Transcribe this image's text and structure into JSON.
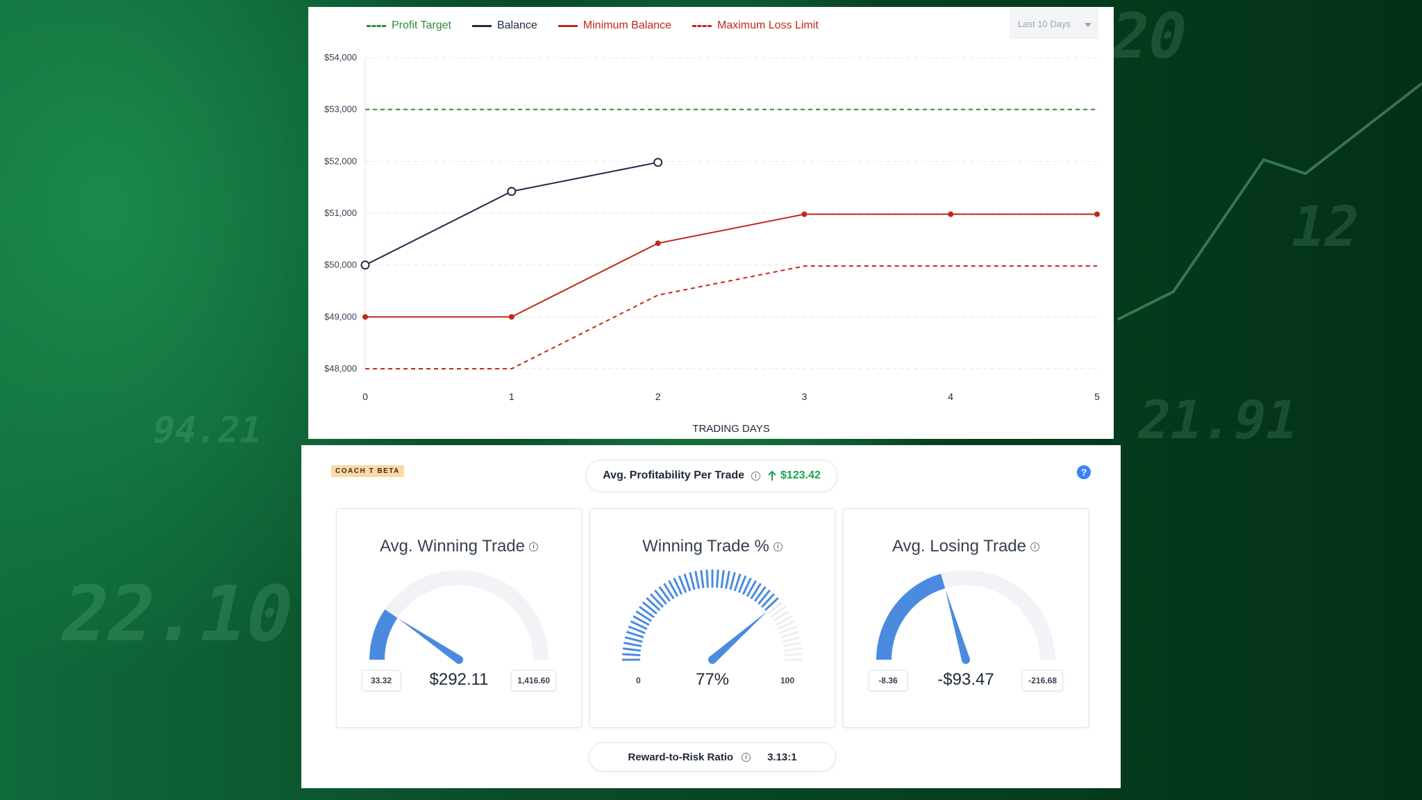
{
  "chart": {
    "legend": [
      {
        "label": "Profit Target",
        "color": "#2e8b3a",
        "dashed": true
      },
      {
        "label": "Balance",
        "color": "#1f2a44",
        "dashed": false
      },
      {
        "label": "Minimum Balance",
        "color": "#c0281c",
        "dashed": false
      },
      {
        "label": "Maximum Loss Limit",
        "color": "#c0281c",
        "dashed": true
      }
    ],
    "range_select": "Last 10 Days"
  },
  "chart_data": {
    "type": "line",
    "xlabel": "TRADING DAYS",
    "ylabel": "",
    "x": [
      0,
      1,
      2,
      3,
      4,
      5
    ],
    "ylim": [
      48000,
      54000
    ],
    "yticks": [
      "$54,000",
      "$53,000",
      "$52,000",
      "$51,000",
      "$50,000",
      "$49,000",
      "$48,000"
    ],
    "ytick_values": [
      54000,
      53000,
      52000,
      51000,
      50000,
      49000,
      48000
    ],
    "grid": true,
    "legend_position": "top-left",
    "series": [
      {
        "name": "Profit Target",
        "color": "#2e8b3a",
        "style": "dashed",
        "x": [
          0,
          5
        ],
        "values": [
          53000,
          53000
        ]
      },
      {
        "name": "Balance",
        "color": "#1f2a44",
        "style": "solid",
        "markers": "open-circle",
        "x": [
          0,
          1,
          2
        ],
        "values": [
          50000,
          51420,
          51980
        ]
      },
      {
        "name": "Minimum Balance",
        "color": "#c0281c",
        "style": "solid",
        "markers": "dot",
        "x": [
          0,
          1,
          2,
          3,
          4,
          5
        ],
        "values": [
          49000,
          49000,
          50420,
          50980,
          50980,
          50980
        ]
      },
      {
        "name": "Maximum Loss Limit",
        "color": "#c0281c",
        "style": "dashed",
        "x": [
          0,
          1,
          2,
          3,
          4,
          5
        ],
        "values": [
          48000,
          48000,
          49420,
          49980,
          49980,
          49980
        ]
      }
    ]
  },
  "stats": {
    "badge": "COACH T BETA",
    "avg_profit_label": "Avg. Profitability Per Trade",
    "avg_profit_value": "$123.42",
    "help": "?",
    "reward_risk_label": "Reward-to-Risk Ratio",
    "reward_risk_value": "3.13:1",
    "cards": [
      {
        "title": "Avg. Winning Trade",
        "value": "$292.11",
        "min": "33.32",
        "max": "1,416.60",
        "fraction": 0.19,
        "color": "#4a8be0"
      },
      {
        "title": "Winning Trade %",
        "value": "77%",
        "min": "0",
        "max": "100",
        "fraction": 0.77,
        "color": "#4a8be0"
      },
      {
        "title": "Avg. Losing Trade",
        "value": "-$93.47",
        "min": "-8.36",
        "max": "-216.68",
        "fraction": 0.41,
        "color": "#4a8be0"
      }
    ]
  }
}
